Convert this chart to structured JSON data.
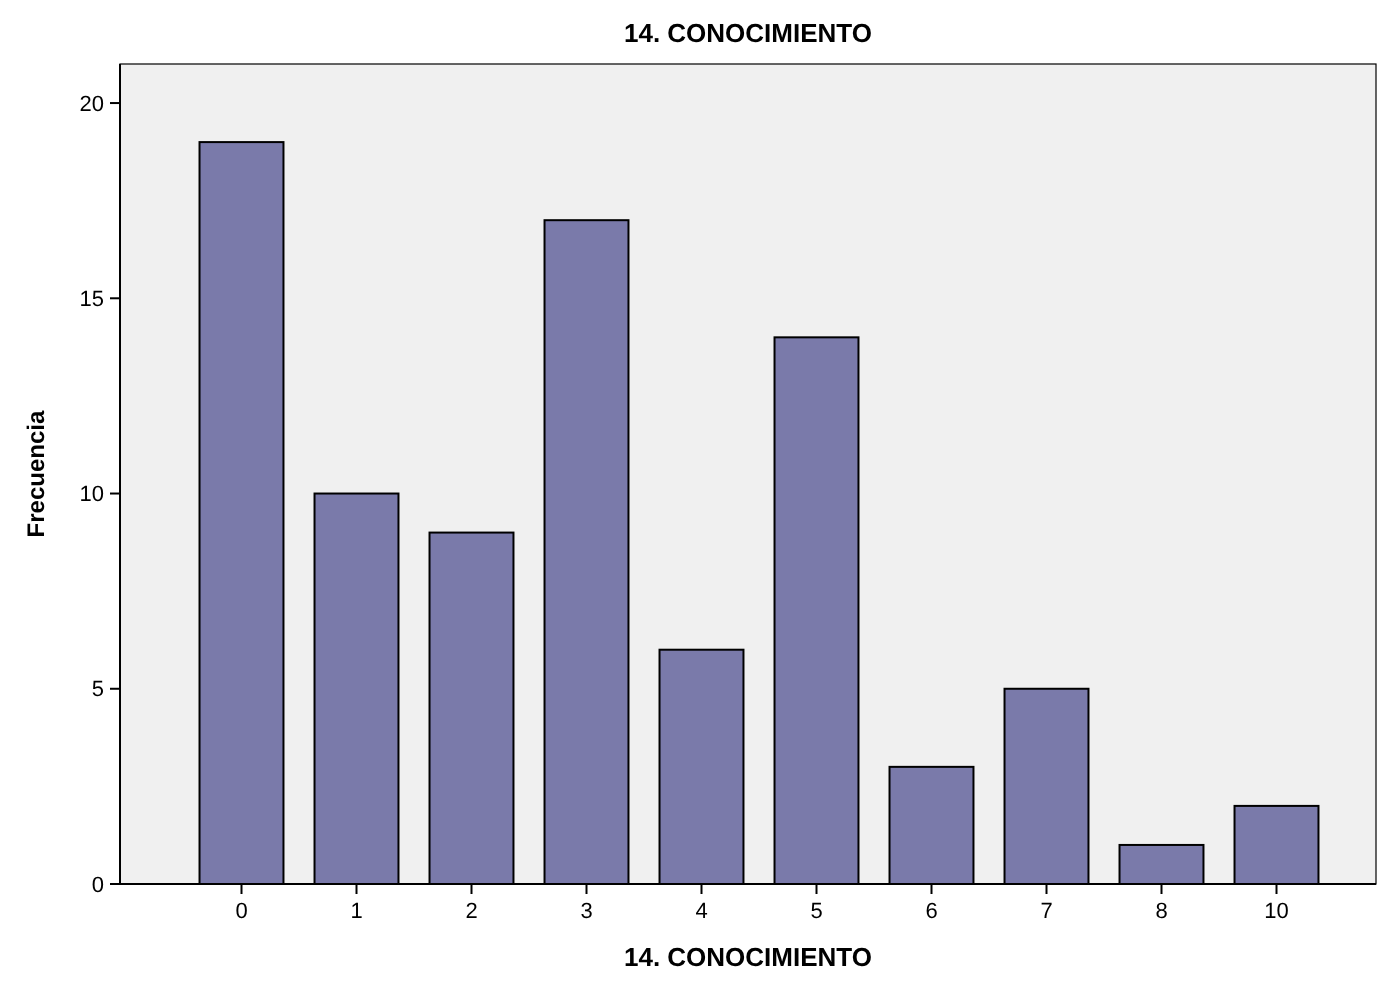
{
  "chart_data": {
    "type": "bar",
    "title": "14. CONOCIMIENTO",
    "xlabel": "14. CONOCIMIENTO",
    "ylabel": "Frecuencia",
    "categories": [
      "0",
      "1",
      "2",
      "3",
      "4",
      "5",
      "6",
      "7",
      "8",
      "10"
    ],
    "values": [
      19,
      10,
      9,
      17,
      6,
      14,
      3,
      5,
      1,
      2
    ],
    "color": "#7a7aaa",
    "ylim": [
      0,
      21
    ],
    "yticks": [
      0,
      5,
      10,
      15,
      20
    ],
    "grid": false
  }
}
